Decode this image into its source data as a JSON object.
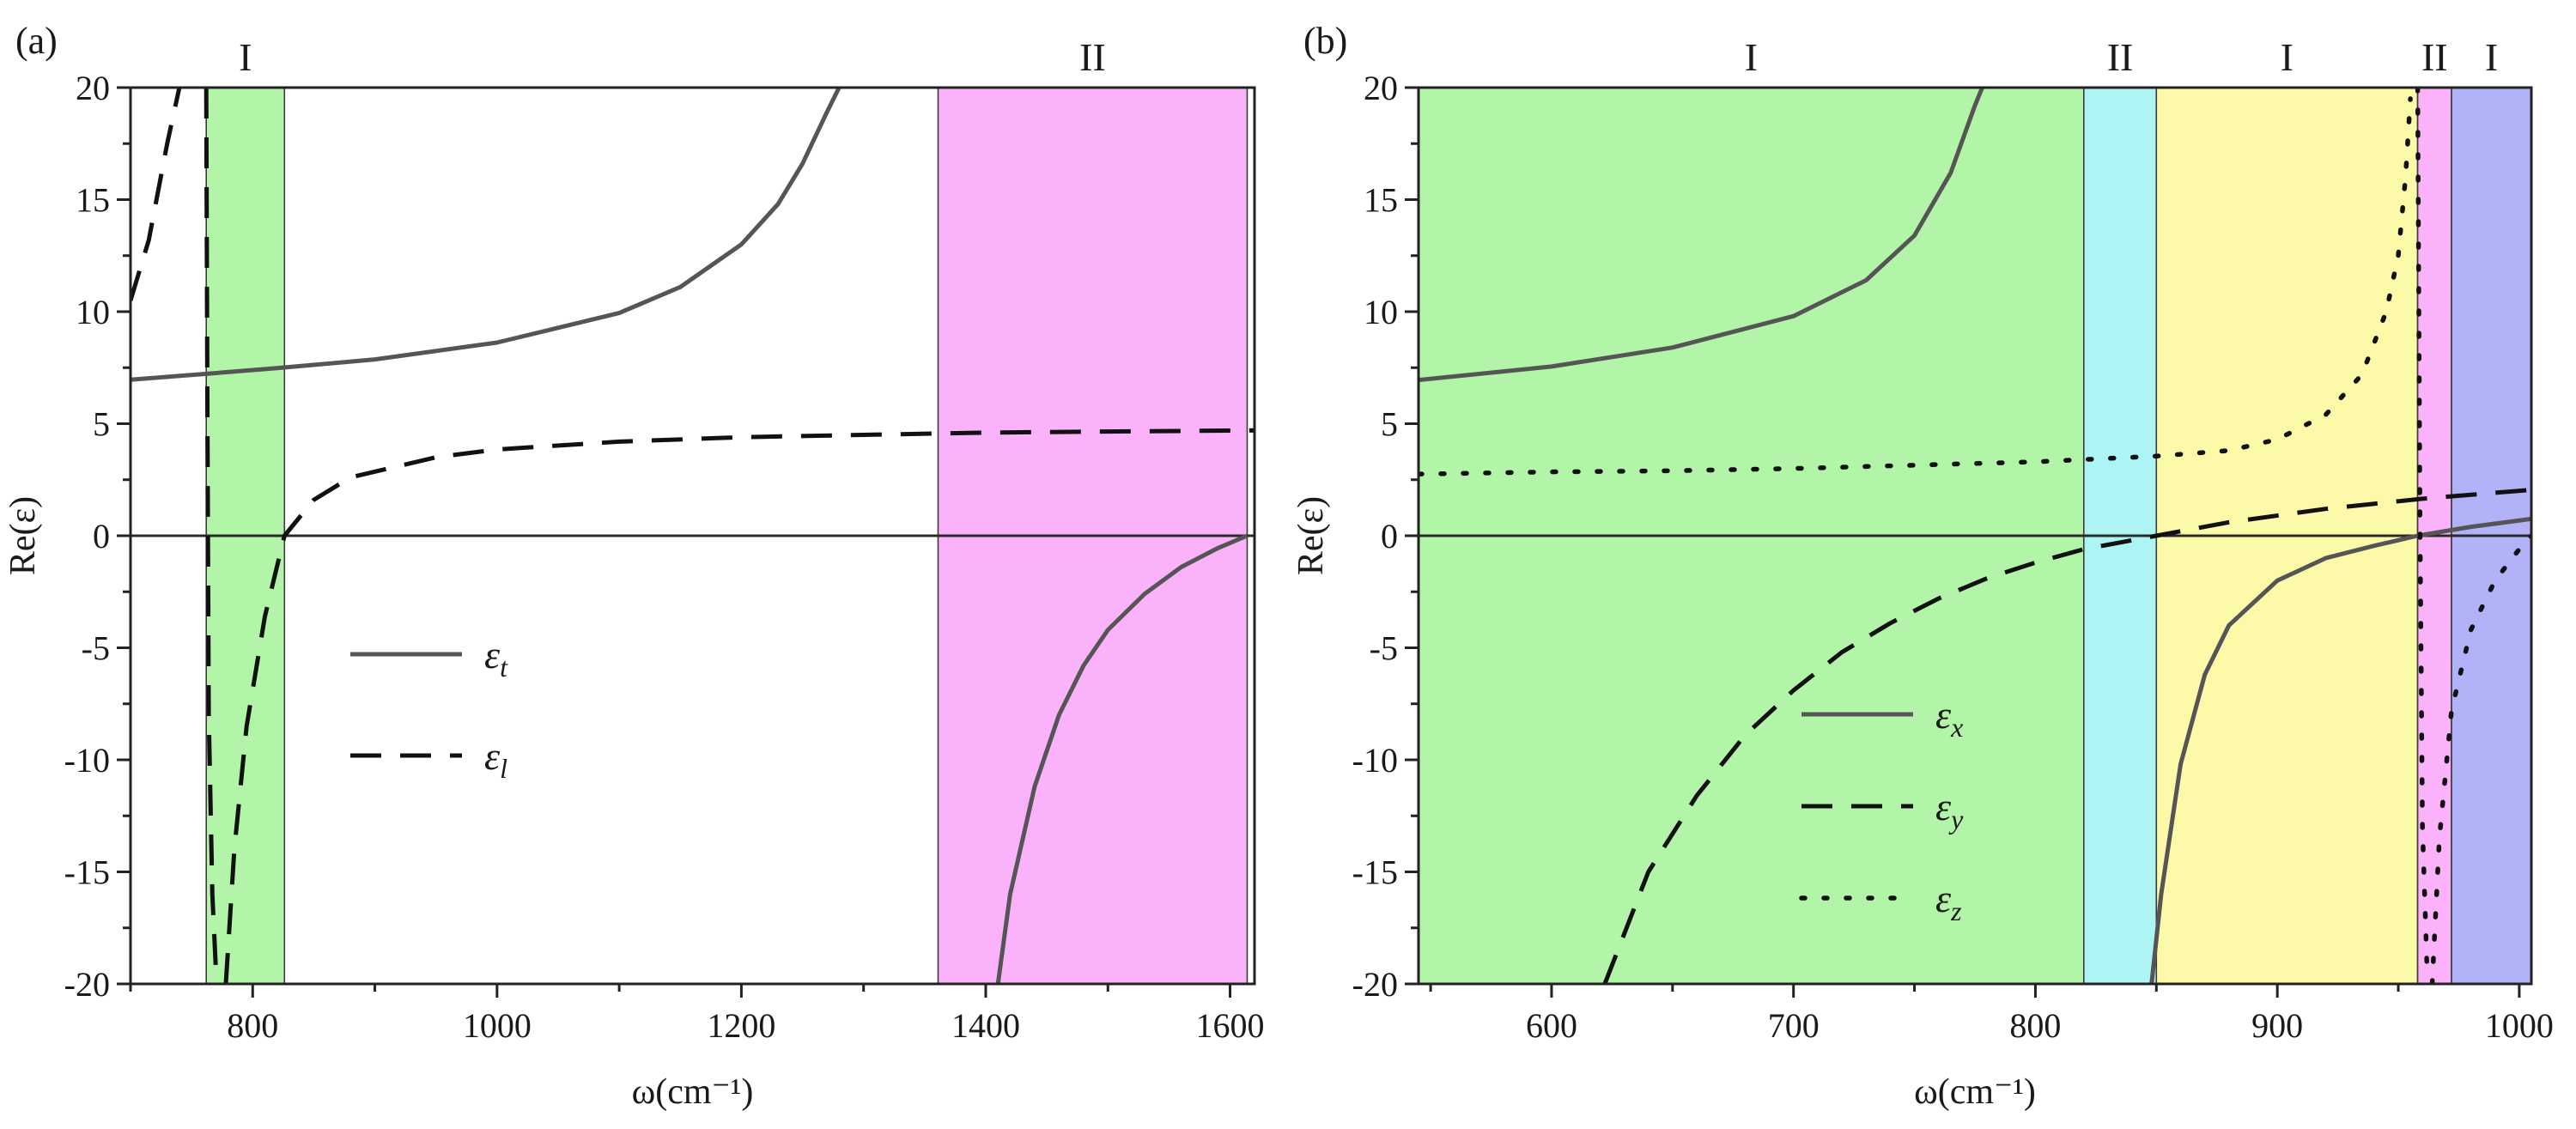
{
  "chart_data": [
    {
      "type": "line",
      "panel_label": "(a)",
      "xlabel": "ω(cm⁻¹)",
      "ylabel": "Re(ε)",
      "xlim": [
        700,
        1620
      ],
      "ylim": [
        -20,
        20
      ],
      "xticks": [
        800,
        1000,
        1200,
        1400,
        1600
      ],
      "yticks": [
        -20,
        -15,
        -10,
        -5,
        0,
        5,
        10,
        15,
        20
      ],
      "tick_labels_x": [
        "800",
        "1000",
        "1200",
        "1400",
        "1600"
      ],
      "tick_labels_y": [
        "-20",
        "-15",
        "-10",
        "-5",
        "0",
        "5",
        "10",
        "15",
        "20"
      ],
      "grid": false,
      "legend_position": "center-left",
      "regions": [
        {
          "label": "I",
          "from": 762,
          "to": 826,
          "color": "#b3f5a8"
        },
        {
          "label": "II",
          "from": 1361,
          "to": 1614,
          "color": "#fab2fa"
        }
      ],
      "series": [
        {
          "name": "εt",
          "legend_main": "ε",
          "legend_sub": "t",
          "style": "solid",
          "color": "#555555",
          "points": [
            [
              700,
              6.96
            ],
            [
              760,
              7.22
            ],
            [
              820,
              7.48
            ],
            [
              900,
              7.87
            ],
            [
              1000,
              8.62
            ],
            [
              1100,
              9.94
            ],
            [
              1150,
              11.1
            ],
            [
              1200,
              13.0
            ],
            [
              1230,
              14.8
            ],
            [
              1250,
              16.6
            ],
            [
              1270,
              18.9
            ],
            [
              1280,
              20
            ]
          ]
        },
        {
          "name": "εt",
          "style": "solid",
          "color": "#555555",
          "points": [
            [
              1410,
              -20
            ],
            [
              1420,
              -16
            ],
            [
              1440,
              -11.2
            ],
            [
              1460,
              -8.0
            ],
            [
              1480,
              -5.8
            ],
            [
              1500,
              -4.2
            ],
            [
              1530,
              -2.6
            ],
            [
              1560,
              -1.4
            ],
            [
              1590,
              -0.55
            ],
            [
              1614,
              0
            ]
          ]
        },
        {
          "name": "εl",
          "legend_main": "ε",
          "legend_sub": "l",
          "style": "dashed",
          "color": "#111111",
          "points": [
            [
              700,
              10.5
            ],
            [
              715,
              13.2
            ],
            [
              730,
              17.5
            ],
            [
              740,
              20
            ]
          ]
        },
        {
          "name": "εl",
          "style": "dashed",
          "color": "#111111",
          "points": [
            [
              762,
              20
            ],
            [
              763,
              5
            ],
            [
              764,
              -8
            ],
            [
              767,
              -16
            ],
            [
              770,
              -19.5
            ]
          ]
        },
        {
          "name": "εl",
          "style": "dashed",
          "color": "#111111",
          "points": [
            [
              778,
              -20
            ],
            [
              785,
              -14
            ],
            [
              795,
              -8.5
            ],
            [
              810,
              -3.6
            ],
            [
              826,
              0
            ],
            [
              850,
              1.6
            ],
            [
              880,
              2.6
            ],
            [
              950,
              3.5
            ],
            [
              1000,
              3.85
            ],
            [
              1100,
              4.2
            ],
            [
              1200,
              4.4
            ],
            [
              1300,
              4.5
            ],
            [
              1400,
              4.6
            ],
            [
              1500,
              4.65
            ],
            [
              1620,
              4.7
            ]
          ]
        }
      ]
    },
    {
      "type": "line",
      "panel_label": "(b)",
      "xlabel": "ω(cm⁻¹)",
      "ylabel": "Re(ε)",
      "xlim": [
        545,
        1005
      ],
      "ylim": [
        -20,
        20
      ],
      "xticks": [
        600,
        700,
        800,
        900,
        1000
      ],
      "yticks": [
        -20,
        -15,
        -10,
        -5,
        0,
        5,
        10,
        15,
        20
      ],
      "tick_labels_x": [
        "600",
        "700",
        "800",
        "900",
        "1000"
      ],
      "tick_labels_y": [
        "-20",
        "-15",
        "-10",
        "-5",
        "0",
        "5",
        "10",
        "15",
        "20"
      ],
      "grid": false,
      "legend_position": "center",
      "regions": [
        {
          "label": "I",
          "from": 545,
          "to": 820,
          "color": "#b3f5a8"
        },
        {
          "label": "II",
          "from": 820,
          "to": 850,
          "color": "#adf5f5"
        },
        {
          "label": "I",
          "from": 850,
          "to": 958,
          "color": "#fcfaa8"
        },
        {
          "label": "II",
          "from": 958,
          "to": 972,
          "color": "#fab2fa"
        },
        {
          "label": "I",
          "from": 972,
          "to": 1005,
          "color": "#b2b2f8"
        }
      ],
      "series": [
        {
          "name": "εx",
          "legend_main": "ε",
          "legend_sub": "x",
          "style": "solid",
          "color": "#555555",
          "points": [
            [
              545,
              6.95
            ],
            [
              600,
              7.55
            ],
            [
              650,
              8.4
            ],
            [
              700,
              9.8
            ],
            [
              730,
              11.4
            ],
            [
              750,
              13.4
            ],
            [
              765,
              16.2
            ],
            [
              775,
              19.2
            ],
            [
              778,
              20
            ]
          ]
        },
        {
          "name": "εx",
          "style": "solid",
          "color": "#555555",
          "points": [
            [
              848,
              -20
            ],
            [
              852,
              -16
            ],
            [
              860,
              -10.2
            ],
            [
              870,
              -6.2
            ],
            [
              880,
              -4.0
            ],
            [
              900,
              -2.0
            ],
            [
              920,
              -1.0
            ],
            [
              940,
              -0.45
            ],
            [
              958,
              0
            ],
            [
              980,
              0.4
            ],
            [
              1005,
              0.75
            ]
          ]
        },
        {
          "name": "εy",
          "legend_main": "ε",
          "legend_sub": "y",
          "style": "dashed",
          "color": "#111111",
          "points": [
            [
              622,
              -20
            ],
            [
              640,
              -15
            ],
            [
              660,
              -11.6
            ],
            [
              680,
              -8.9
            ],
            [
              700,
              -6.9
            ],
            [
              720,
              -5.2
            ],
            [
              740,
              -3.9
            ],
            [
              760,
              -2.8
            ],
            [
              780,
              -1.9
            ],
            [
              800,
              -1.2
            ],
            [
              820,
              -0.6
            ],
            [
              850,
              0
            ],
            [
              880,
              0.6
            ],
            [
              920,
              1.2
            ],
            [
              960,
              1.65
            ],
            [
              1005,
              2.05
            ]
          ]
        },
        {
          "name": "εz",
          "legend_main": "ε",
          "legend_sub": "z",
          "style": "dotted",
          "color": "#111111",
          "points": [
            [
              545,
              2.75
            ],
            [
              600,
              2.85
            ],
            [
              650,
              2.9
            ],
            [
              700,
              3.0
            ],
            [
              750,
              3.15
            ],
            [
              800,
              3.3
            ],
            [
              850,
              3.55
            ],
            [
              880,
              3.8
            ],
            [
              900,
              4.3
            ],
            [
              920,
              5.4
            ],
            [
              935,
              7.2
            ],
            [
              945,
              10
            ],
            [
              950,
              12.5
            ],
            [
              953,
              16
            ],
            [
              955,
              19.5
            ]
          ]
        },
        {
          "name": "εz",
          "style": "dotted",
          "color": "#111111",
          "points": [
            [
              958,
              20
            ],
            [
              959,
              0
            ],
            [
              960,
              -13
            ],
            [
              962,
              -19.8
            ]
          ]
        },
        {
          "name": "εz",
          "style": "dotted",
          "color": "#111111",
          "points": [
            [
              964,
              -20
            ],
            [
              967,
              -13.5
            ],
            [
              972,
              -7.8
            ],
            [
              980,
              -4.2
            ],
            [
              990,
              -2.0
            ],
            [
              1000,
              -0.6
            ],
            [
              1005,
              0
            ]
          ]
        }
      ]
    }
  ]
}
